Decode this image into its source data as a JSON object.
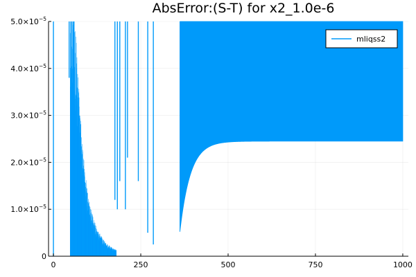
{
  "chart_data": {
    "type": "line",
    "title": "AbsError:(S-T) for x2_1.0e-6",
    "xlabel": "",
    "ylabel": "",
    "xlim": [
      -14,
      1016
    ],
    "ylim": [
      0,
      5e-05
    ],
    "x_ticks": [
      0,
      250,
      500,
      750,
      1000
    ],
    "x_tick_labels": [
      "0",
      "250",
      "500",
      "750",
      "1000"
    ],
    "y_ticks": [
      0,
      1e-05,
      2e-05,
      3e-05,
      4e-05,
      5e-05
    ],
    "y_tick_labels": [
      {
        "mantissa": "0",
        "exp": ""
      },
      {
        "mantissa": "1.0×10",
        "exp": "−5"
      },
      {
        "mantissa": "2.0×10",
        "exp": "−5"
      },
      {
        "mantissa": "3.0×10",
        "exp": "−5"
      },
      {
        "mantissa": "4.0×10",
        "exp": "−5"
      },
      {
        "mantissa": "5.0×10",
        "exp": "−5"
      }
    ],
    "grid": true,
    "legend_position": "top-right",
    "series": [
      {
        "name": "mliqss2",
        "color": "#009AFA",
        "spikes": [
          {
            "x": 0,
            "low": 0,
            "high": 5e-05
          },
          {
            "x": 45,
            "low": 3.8e-05,
            "high": 5e-05
          },
          {
            "x": 50,
            "low": 2.9e-05,
            "high": 5e-05
          },
          {
            "x": 176,
            "low": 1.2e-05,
            "high": 5e-05
          },
          {
            "x": 183,
            "low": 1e-05,
            "high": 5e-05
          },
          {
            "x": 190,
            "low": 1.6e-05,
            "high": 5e-05
          },
          {
            "x": 206,
            "low": 1e-05,
            "high": 5e-05
          },
          {
            "x": 212,
            "low": 2.1e-05,
            "high": 5e-05
          },
          {
            "x": 243,
            "low": 1.6e-05,
            "high": 5e-05
          },
          {
            "x": 270,
            "low": 5e-06,
            "high": 5e-05
          },
          {
            "x": 286,
            "low": 2.5e-06,
            "high": 5e-05
          }
        ],
        "dense_band": {
          "x_start": 48,
          "x_end": 180,
          "upper_x": [
            48,
            60,
            70,
            80,
            90,
            100,
            110,
            120,
            130,
            140,
            150,
            160,
            170,
            180
          ],
          "upper_y": [
            5e-05,
            4.8e-05,
            3.5e-05,
            2.3e-05,
            1.6e-05,
            1.1e-05,
            8e-06,
            6e-06,
            4.5e-06,
            3.5e-06,
            2.5e-06,
            2e-06,
            1.5e-06,
            1.2e-06
          ],
          "lower_y": 0
        },
        "oscillation_band": {
          "x_start": 362,
          "x_end": 1000,
          "upper": 5e-05,
          "lower_start": 5.2e-06,
          "lower_steady": 2.45e-05,
          "decay_constant": 30
        }
      }
    ]
  }
}
